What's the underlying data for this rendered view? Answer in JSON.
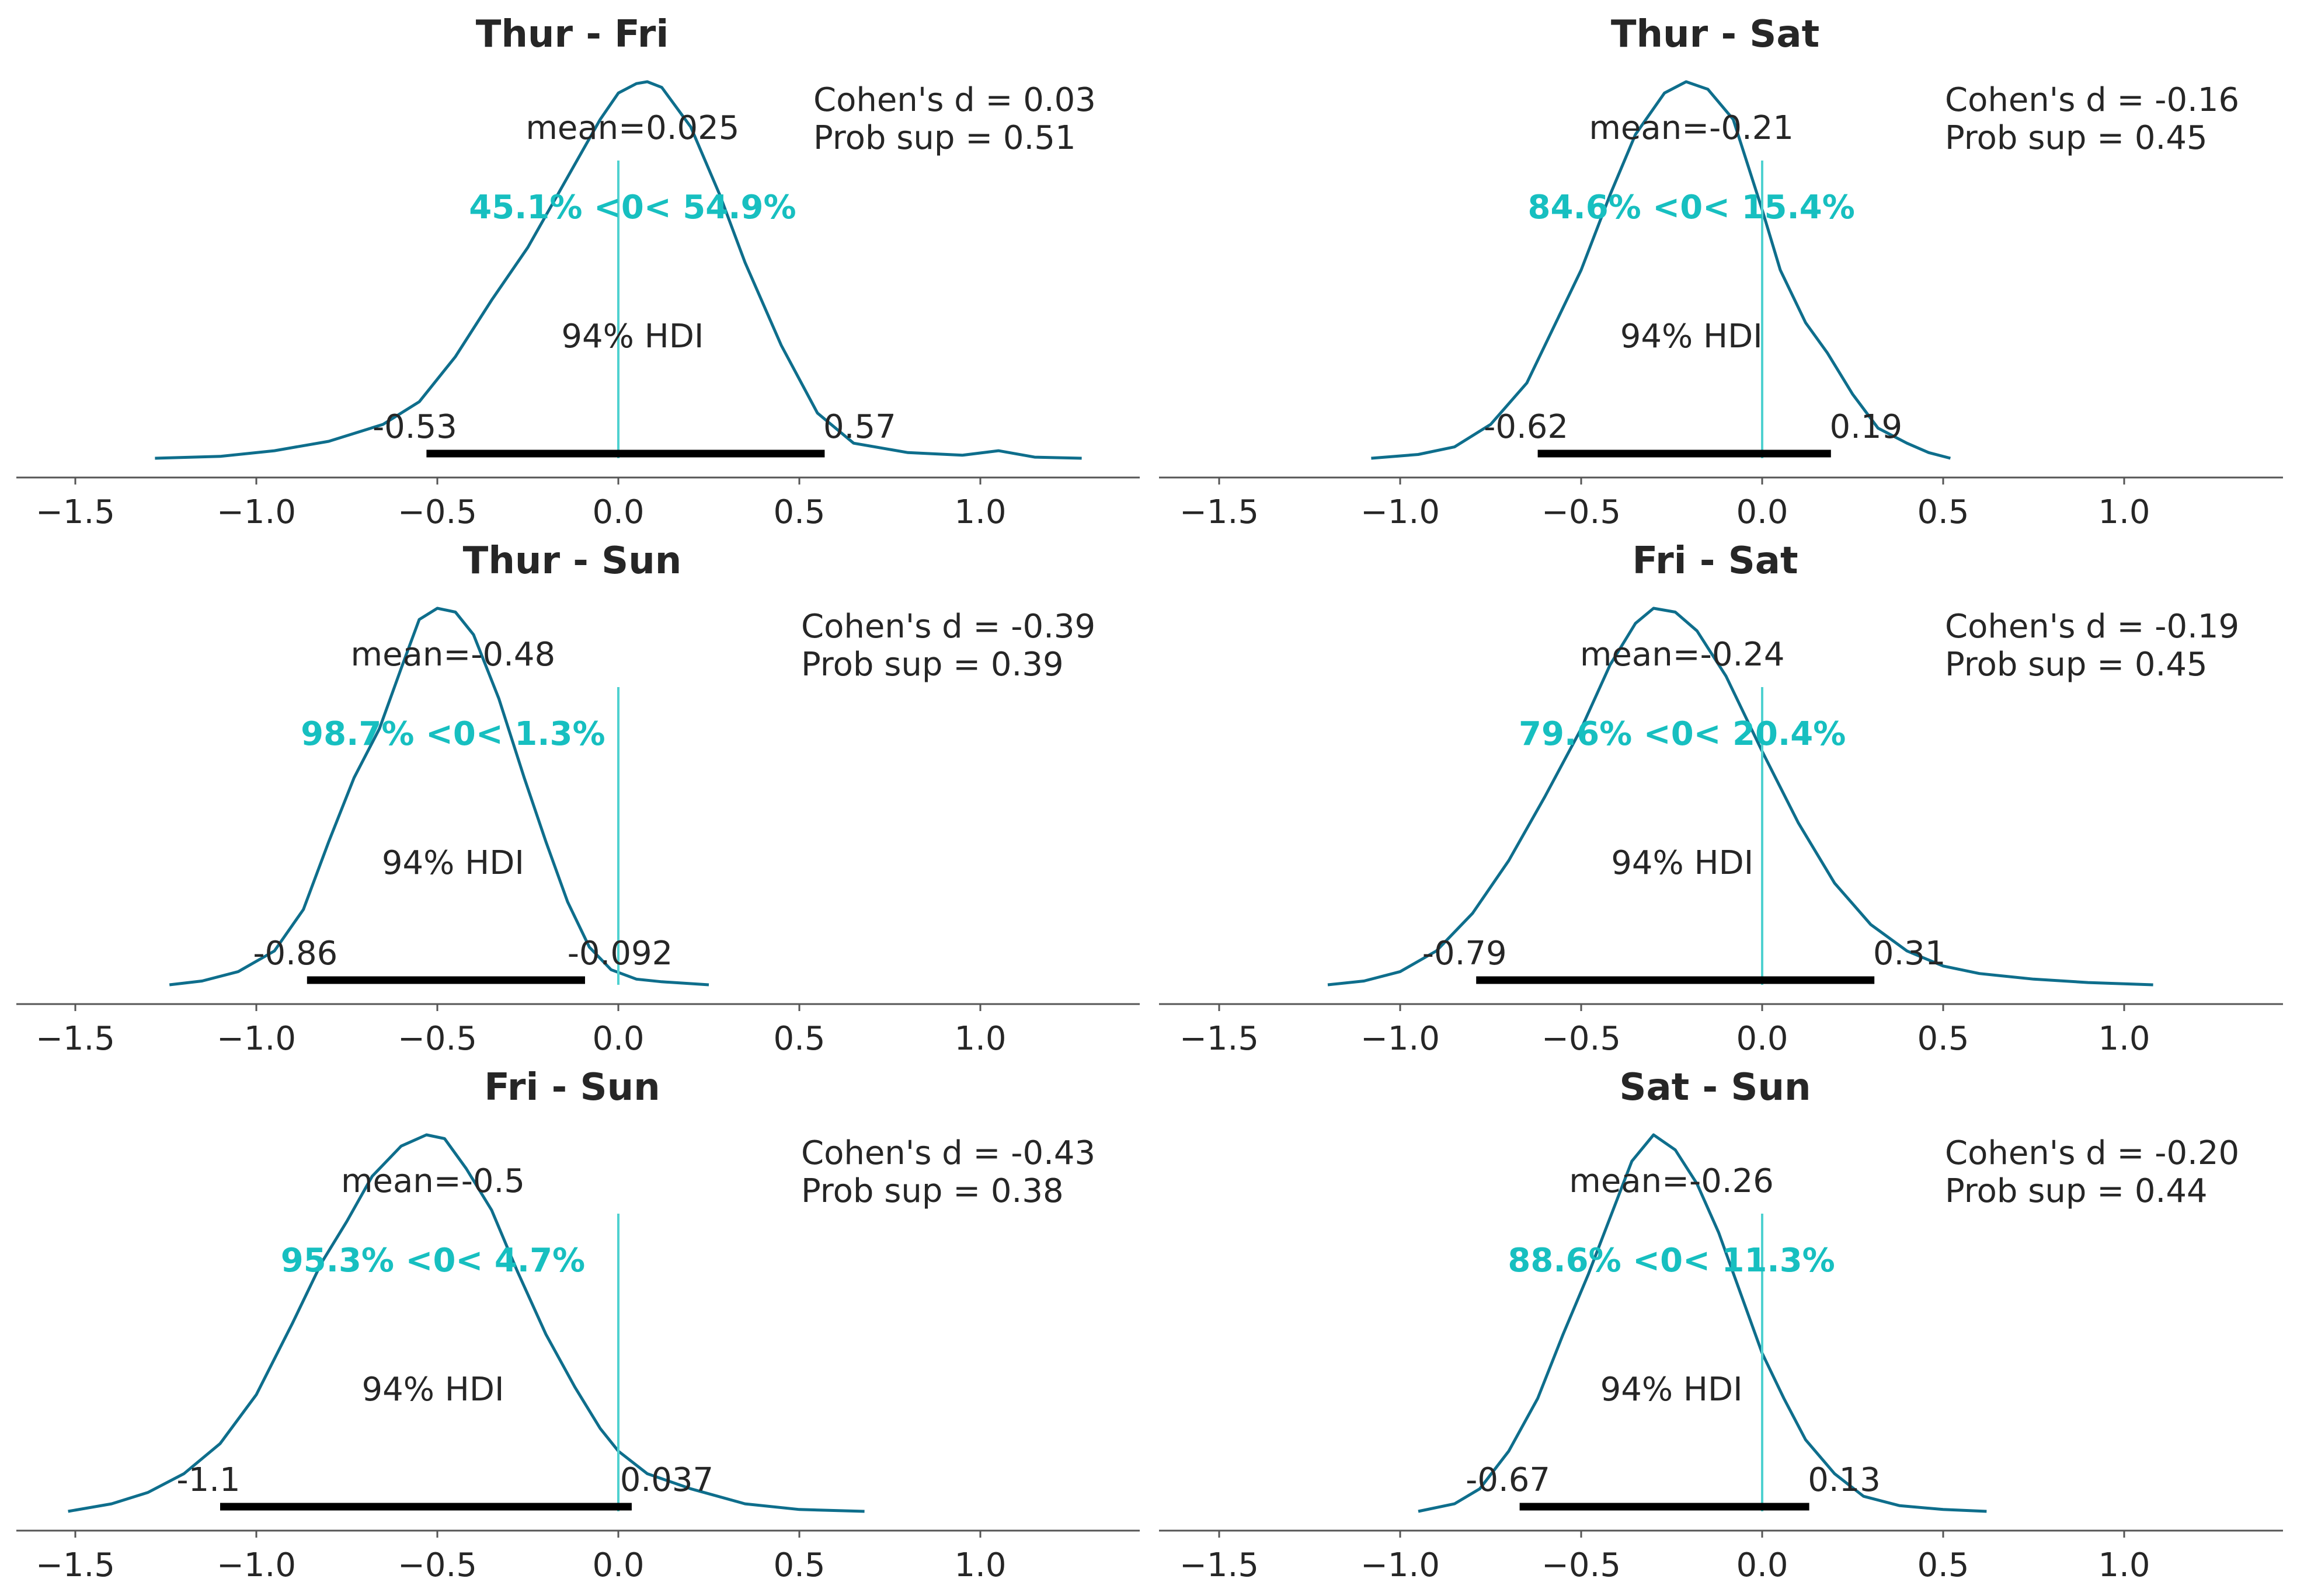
{
  "chart_data": [
    {
      "type": "area",
      "title": "Thur - Fri",
      "mean_label": "mean=0.025",
      "ref_label": "45.1% <0< 54.9%",
      "hdi_label": "94% HDI",
      "hdi": [
        -0.53,
        0.57
      ],
      "hdi_low_label": "-0.53",
      "hdi_high_label": "0.57",
      "cohens_label": "Cohen's d = 0.03",
      "probsup_label": "Prob sup = 0.51",
      "ref_val": 0,
      "xlim": [
        -1.65,
        1.45
      ],
      "xticks": [
        -1.5,
        -1.0,
        -0.5,
        0.0,
        0.5,
        1.0
      ],
      "xtick_labels": [
        "−1.5",
        "−1.0",
        "−0.5",
        "0.0",
        "0.5",
        "1.0"
      ],
      "density": {
        "x": [
          -1.28,
          -1.1,
          -0.95,
          -0.8,
          -0.65,
          -0.55,
          -0.45,
          -0.35,
          -0.25,
          -0.15,
          -0.05,
          0.0,
          0.05,
          0.08,
          0.12,
          0.2,
          0.28,
          0.35,
          0.45,
          0.55,
          0.65,
          0.8,
          0.95,
          1.05,
          1.15,
          1.28
        ],
        "y": [
          0.0,
          0.005,
          0.02,
          0.045,
          0.09,
          0.15,
          0.27,
          0.42,
          0.56,
          0.73,
          0.9,
          0.97,
          0.995,
          1.0,
          0.985,
          0.88,
          0.7,
          0.52,
          0.3,
          0.12,
          0.04,
          0.015,
          0.008,
          0.02,
          0.003,
          0.0
        ]
      }
    },
    {
      "type": "area",
      "title": "Thur - Sat",
      "mean_label": "mean=-0.21",
      "ref_label": "84.6% <0< 15.4%",
      "hdi_label": "94% HDI",
      "hdi": [
        -0.62,
        0.19
      ],
      "hdi_low_label": "-0.62",
      "hdi_high_label": "0.19",
      "cohens_label": "Cohen's d = -0.16",
      "probsup_label": "Prob sup = 0.45",
      "ref_val": 0,
      "xlim": [
        -1.65,
        1.45
      ],
      "xticks": [
        -1.5,
        -1.0,
        -0.5,
        0.0,
        0.5,
        1.0
      ],
      "xtick_labels": [
        "−1.5",
        "−1.0",
        "−0.5",
        "0.0",
        "0.5",
        "1.0"
      ],
      "density": {
        "x": [
          -1.08,
          -0.95,
          -0.85,
          -0.75,
          -0.65,
          -0.58,
          -0.5,
          -0.42,
          -0.35,
          -0.27,
          -0.21,
          -0.15,
          -0.08,
          0.0,
          0.05,
          0.12,
          0.18,
          0.25,
          0.32,
          0.4,
          0.46,
          0.52
        ],
        "y": [
          0.0,
          0.01,
          0.03,
          0.09,
          0.2,
          0.34,
          0.5,
          0.7,
          0.86,
          0.97,
          1.0,
          0.98,
          0.9,
          0.66,
          0.5,
          0.36,
          0.28,
          0.17,
          0.08,
          0.04,
          0.015,
          0.0
        ]
      }
    },
    {
      "type": "area",
      "title": "Thur - Sun",
      "mean_label": "mean=-0.48",
      "ref_label": "98.7% <0< 1.3%",
      "hdi_label": "94% HDI",
      "hdi": [
        -0.86,
        -0.092
      ],
      "hdi_low_label": "-0.86",
      "hdi_high_label": "-0.092",
      "cohens_label": "Cohen's d = -0.39",
      "probsup_label": "Prob sup = 0.39",
      "ref_val": 0,
      "xlim": [
        -1.65,
        1.45
      ],
      "xticks": [
        -1.5,
        -1.0,
        -0.5,
        0.0,
        0.5,
        1.0
      ],
      "xtick_labels": [
        "−1.5",
        "−1.0",
        "−0.5",
        "0.0",
        "0.5",
        "1.0"
      ],
      "density": {
        "x": [
          -1.24,
          -1.15,
          -1.05,
          -0.95,
          -0.87,
          -0.8,
          -0.73,
          -0.66,
          -0.6,
          -0.55,
          -0.5,
          -0.45,
          -0.4,
          -0.33,
          -0.26,
          -0.2,
          -0.14,
          -0.08,
          -0.02,
          0.05,
          0.12,
          0.25
        ],
        "y": [
          0.0,
          0.01,
          0.035,
          0.09,
          0.2,
          0.38,
          0.55,
          0.68,
          0.84,
          0.97,
          1.0,
          0.99,
          0.93,
          0.76,
          0.55,
          0.38,
          0.22,
          0.1,
          0.04,
          0.015,
          0.008,
          0.0
        ]
      }
    },
    {
      "type": "area",
      "title": "Fri - Sat",
      "mean_label": "mean=-0.24",
      "ref_label": "79.6% <0< 20.4%",
      "hdi_label": "94% HDI",
      "hdi": [
        -0.79,
        0.31
      ],
      "hdi_low_label": "-0.79",
      "hdi_high_label": "0.31",
      "cohens_label": "Cohen's d = -0.19",
      "probsup_label": "Prob sup = 0.45",
      "ref_val": 0,
      "xlim": [
        -1.65,
        1.45
      ],
      "xticks": [
        -1.5,
        -1.0,
        -0.5,
        0.0,
        0.5,
        1.0
      ],
      "xtick_labels": [
        "−1.5",
        "−1.0",
        "−0.5",
        "0.0",
        "0.5",
        "1.0"
      ],
      "density": {
        "x": [
          -1.2,
          -1.1,
          -1.0,
          -0.9,
          -0.8,
          -0.7,
          -0.6,
          -0.5,
          -0.42,
          -0.35,
          -0.3,
          -0.24,
          -0.18,
          -0.1,
          0.0,
          0.1,
          0.2,
          0.3,
          0.4,
          0.5,
          0.6,
          0.75,
          0.9,
          1.08
        ],
        "y": [
          0.0,
          0.01,
          0.035,
          0.09,
          0.19,
          0.33,
          0.5,
          0.68,
          0.85,
          0.96,
          1.0,
          0.99,
          0.94,
          0.82,
          0.62,
          0.43,
          0.27,
          0.16,
          0.09,
          0.05,
          0.03,
          0.015,
          0.006,
          0.0
        ]
      }
    },
    {
      "type": "area",
      "title": "Fri - Sun",
      "mean_label": "mean=-0.5",
      "ref_label": "95.3% <0< 4.7%",
      "hdi_label": "94% HDI",
      "hdi": [
        -1.1,
        0.037
      ],
      "hdi_low_label": "-1.1",
      "hdi_high_label": "0.037",
      "cohens_label": "Cohen's d = -0.43",
      "probsup_label": "Prob sup = 0.38",
      "ref_val": 0,
      "xlim": [
        -1.65,
        1.45
      ],
      "xticks": [
        -1.5,
        -1.0,
        -0.5,
        0.0,
        0.5,
        1.0
      ],
      "xtick_labels": [
        "−1.5",
        "−1.0",
        "−0.5",
        "0.0",
        "0.5",
        "1.0"
      ],
      "density": {
        "x": [
          -1.52,
          -1.4,
          -1.3,
          -1.2,
          -1.1,
          -1.0,
          -0.9,
          -0.82,
          -0.75,
          -0.68,
          -0.6,
          -0.53,
          -0.48,
          -0.42,
          -0.35,
          -0.28,
          -0.2,
          -0.12,
          -0.05,
          0.0,
          0.08,
          0.2,
          0.35,
          0.5,
          0.68
        ],
        "y": [
          0.0,
          0.02,
          0.05,
          0.1,
          0.18,
          0.31,
          0.5,
          0.66,
          0.77,
          0.89,
          0.97,
          1.0,
          0.99,
          0.91,
          0.8,
          0.64,
          0.47,
          0.33,
          0.22,
          0.16,
          0.1,
          0.06,
          0.02,
          0.005,
          0.0
        ]
      }
    },
    {
      "type": "area",
      "title": "Sat - Sun",
      "mean_label": "mean=-0.26",
      "ref_label": "88.6% <0< 11.3%",
      "hdi_label": "94% HDI",
      "hdi": [
        -0.67,
        0.13
      ],
      "hdi_low_label": "-0.67",
      "hdi_high_label": "0.13",
      "cohens_label": "Cohen's d = -0.20",
      "probsup_label": "Prob sup = 0.44",
      "ref_val": 0,
      "xlim": [
        -1.65,
        1.45
      ],
      "xticks": [
        -1.5,
        -1.0,
        -0.5,
        0.0,
        0.5,
        1.0
      ],
      "xtick_labels": [
        "−1.5",
        "−1.0",
        "−0.5",
        "0.0",
        "0.5",
        "1.0"
      ],
      "density": {
        "x": [
          -0.95,
          -0.85,
          -0.78,
          -0.7,
          -0.62,
          -0.55,
          -0.48,
          -0.42,
          -0.36,
          -0.3,
          -0.24,
          -0.18,
          -0.12,
          -0.06,
          0.0,
          0.06,
          0.12,
          0.2,
          0.28,
          0.38,
          0.5,
          0.62
        ],
        "y": [
          0.0,
          0.02,
          0.06,
          0.16,
          0.3,
          0.47,
          0.63,
          0.78,
          0.93,
          1.0,
          0.96,
          0.87,
          0.74,
          0.58,
          0.42,
          0.3,
          0.19,
          0.1,
          0.04,
          0.015,
          0.005,
          0.0
        ]
      }
    }
  ],
  "colors": {
    "kde": "#0e6e8c",
    "reference_line": "#4fd1d0",
    "reference_text": "#17bfc0",
    "hdi_bar": "#000000",
    "text": "#262626",
    "axis": "#555555"
  }
}
